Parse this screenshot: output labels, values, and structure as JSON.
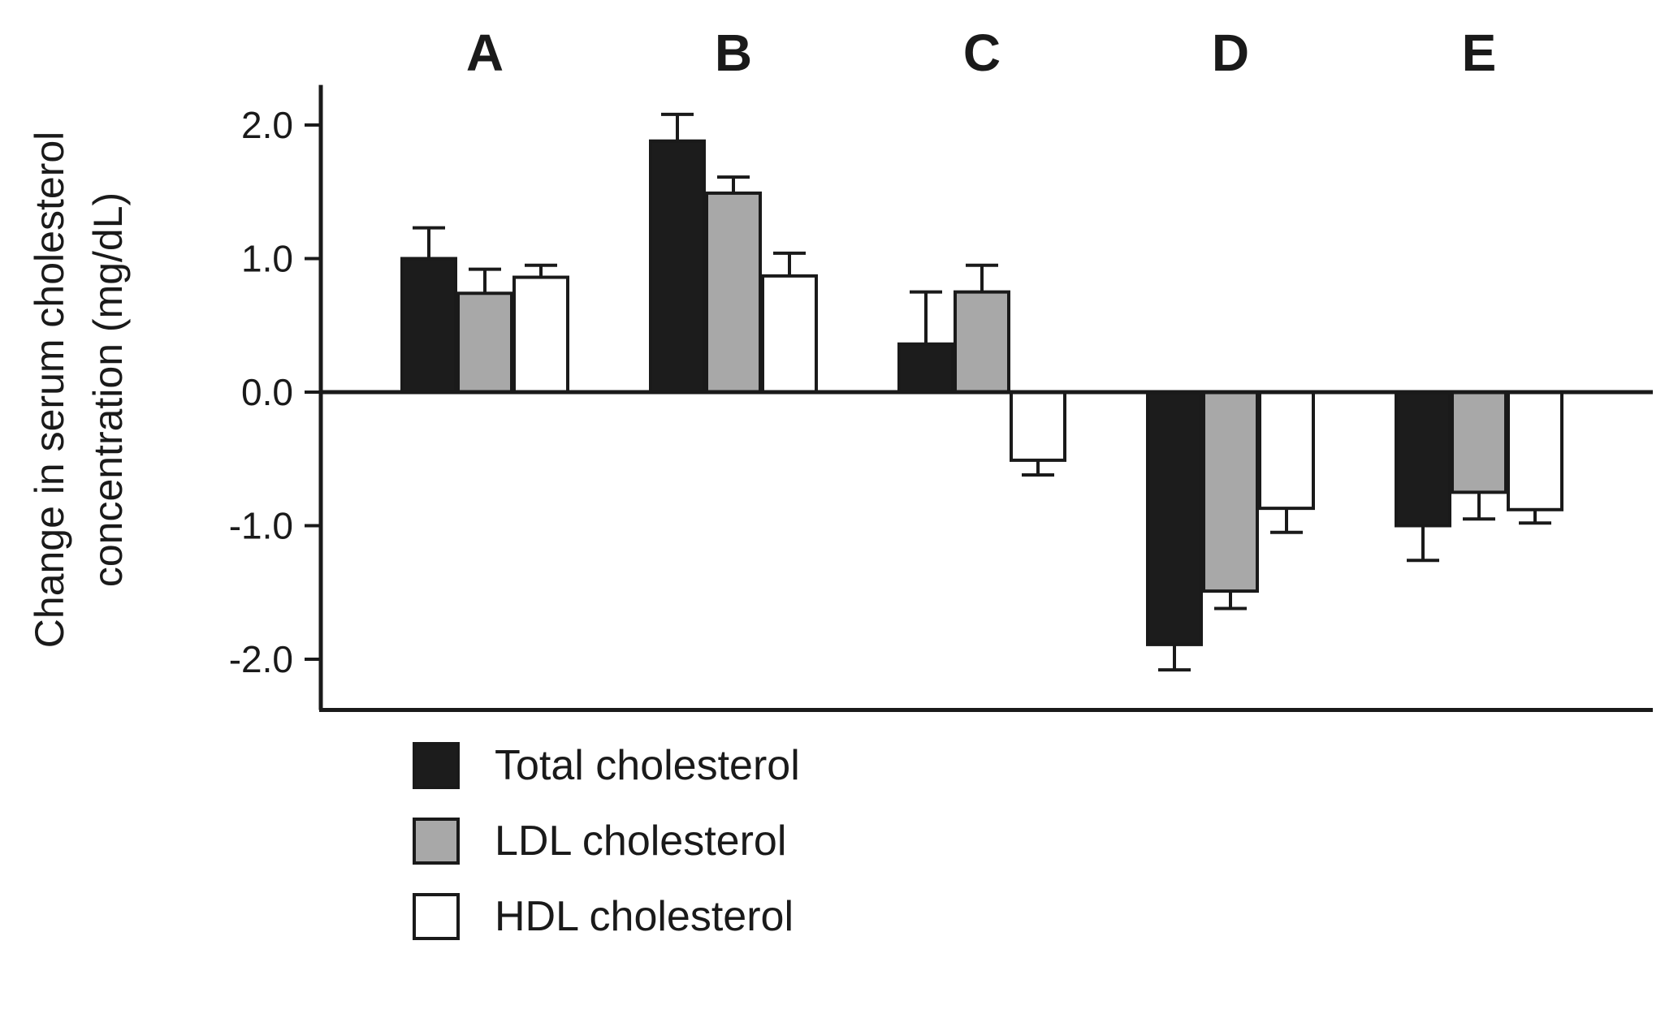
{
  "chart_data": {
    "type": "bar",
    "categories": [
      "A",
      "B",
      "C",
      "D",
      "E"
    ],
    "series": [
      {
        "name": "Total cholesterol",
        "color": "#1c1c1c",
        "values": [
          1.0,
          1.88,
          0.36,
          -1.89,
          -1.0
        ],
        "errors": [
          0.23,
          0.2,
          0.39,
          0.19,
          0.26
        ]
      },
      {
        "name": "LDL cholesterol",
        "color": "#a8a8a8",
        "values": [
          0.74,
          1.49,
          0.75,
          -1.49,
          -0.75
        ],
        "errors": [
          0.18,
          0.12,
          0.2,
          0.13,
          0.2
        ]
      },
      {
        "name": "HDL cholesterol",
        "color": "#ffffff",
        "values": [
          0.86,
          0.87,
          -0.51,
          -0.87,
          -0.88
        ],
        "errors": [
          0.09,
          0.17,
          0.11,
          0.18,
          0.1
        ]
      }
    ],
    "yticks": [
      "2.0",
      "1.0",
      "0.0",
      "-1.0",
      "-2.0"
    ],
    "ytick_values": [
      2.0,
      1.0,
      0.0,
      -1.0,
      -2.0
    ],
    "ylim": [
      -2.38,
      2.3
    ],
    "ylabel_line1": "Change in serum cholesterol",
    "ylabel_line2": "concentration (mg/dL)",
    "grid": false,
    "legend_position": "bottom-left"
  }
}
